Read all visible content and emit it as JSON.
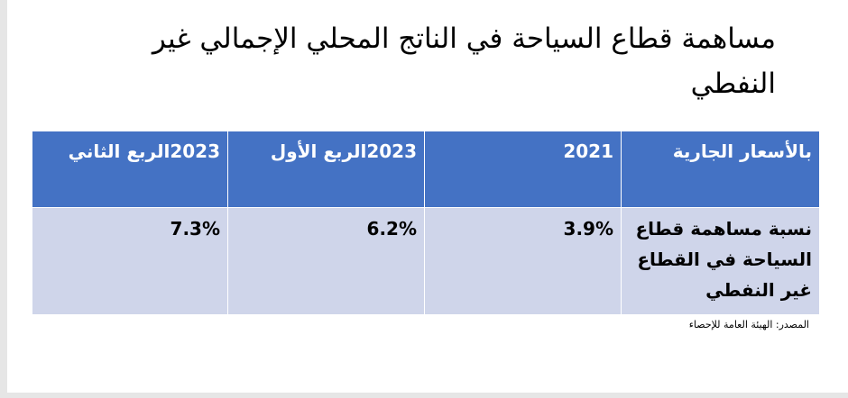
{
  "header": {
    "title": "مساهمة قطاع السياحة في الناتج المحلي الإجمالي غير النفطي"
  },
  "table": {
    "columns": [
      "بالأسعار الجارية",
      "2021",
      "2023الربع الأول",
      "2023الربع الثاني"
    ],
    "rows": [
      [
        "نسبة مساهمة قطاع السياحة في القطاع غير النفطي",
        "3.9%",
        "6.2%",
        "7.3%"
      ]
    ]
  },
  "source": "المصدر: الهيئة العامة للإحصاء"
}
